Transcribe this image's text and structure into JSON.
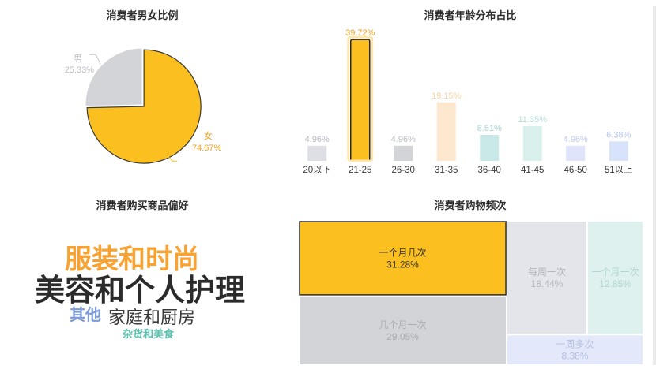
{
  "colors": {
    "accent": "#fbbf1f",
    "gray": "#d3d4d8",
    "text_dark": "#2b2b2b",
    "peach": "#fde8cf",
    "teal": "#c9e8e8",
    "mint": "#d9f0ec",
    "lavender": "#dfe4fb",
    "blue_light": "#d8e2fb"
  },
  "chart_data": [
    {
      "type": "pie",
      "title": "消费者男女比例",
      "slices": [
        {
          "name": "女",
          "value": 74.67,
          "label": "74.67%",
          "color": "#fbbf1f"
        },
        {
          "name": "男",
          "value": 25.33,
          "label": "25.33%",
          "color": "#d3d4d8"
        }
      ]
    },
    {
      "type": "bar",
      "title": "消费者年龄分布占比",
      "categories": [
        "20以下",
        "21-25",
        "26-30",
        "31-35",
        "36-40",
        "41-45",
        "46-50",
        "51以上"
      ],
      "values": [
        4.96,
        39.72,
        4.96,
        19.15,
        8.51,
        11.35,
        4.96,
        6.38
      ],
      "labels": [
        "4.96%",
        "39.72%",
        "4.96%",
        "19.15%",
        "8.51%",
        "11.35%",
        "4.96%",
        "6.38%"
      ],
      "colors": [
        "#dedfe4",
        "#fbbf1f",
        "#d3d4d8",
        "#fde8cf",
        "#c9e8e8",
        "#d9f0ec",
        "#dfe4fb",
        "#d8e2fb"
      ],
      "label_colors": [
        "#b9bcc4",
        "#f0a21e",
        "#b9bcc4",
        "#f9d2a6",
        "#a8d3d3",
        "#b8e0da",
        "#c1c9ef",
        "#b7c6f2"
      ],
      "ylim": [
        0,
        40
      ]
    },
    {
      "type": "wordcloud",
      "title": "消费者购买商品偏好",
      "words": [
        {
          "text": "服装和时尚",
          "color": "#f7a231"
        },
        {
          "text": "美容和个人护理",
          "color": "#2b2b2b"
        },
        {
          "text": "其他",
          "color": "#7b9bdb"
        },
        {
          "text": "家庭和厨房",
          "color": "#3a3a3a"
        },
        {
          "text": "杂货和美食",
          "color": "#5cbfae"
        }
      ]
    },
    {
      "type": "treemap",
      "title": "消费者购物频次",
      "cells": [
        {
          "name": "一个月几次",
          "value": 31.28,
          "label": "31.28%",
          "color": "#fbbf1f",
          "text_color": "#3a3a3a"
        },
        {
          "name": "几个月一次",
          "value": 29.05,
          "label": "29.05%",
          "color": "#d3d4d8",
          "text_color": "#aaadb3"
        },
        {
          "name": "每周一次",
          "value": 18.44,
          "label": "18.44%",
          "color": "#e3e5ea",
          "text_color": "#b3b6bc"
        },
        {
          "name": "一个月一次",
          "value": 12.85,
          "label": "12.85%",
          "color": "#def1ee",
          "text_color": "#b3d6d1"
        },
        {
          "name": "一周多次",
          "value": 8.38,
          "label": "8.38%",
          "color": "#e3e8fb",
          "text_color": "#b6bfe0"
        }
      ]
    }
  ]
}
